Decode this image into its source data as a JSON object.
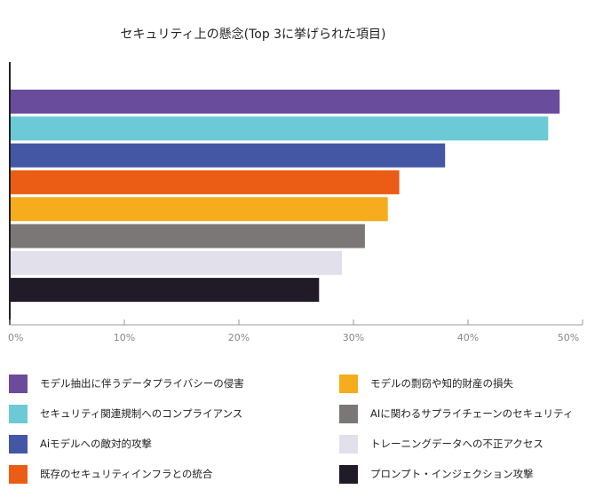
{
  "chart_data": {
    "type": "bar",
    "orientation": "horizontal",
    "title": "セキュリティ上の懸念(Top 3に挙げられた項目)",
    "xlim": [
      0,
      50
    ],
    "xticks": [
      "0%",
      "10%",
      "20%",
      "30%",
      "40%",
      "50%"
    ],
    "grid": false,
    "legend_position": "bottom",
    "categories": [
      "モデル抽出に伴うデータプライバシーの侵害",
      "セキュリティ関連規制へのコンプライアンス",
      "Aiモデルへの敵対的攻撃",
      "既存のセキュリティインフラとの統合",
      "モデルの剽窃や知的財産の損失",
      "AIに関わるサプライチェーンのセキュリティ",
      "トレーニングデータへの不正アクセス",
      "プロンプト・インジェクション攻撃"
    ],
    "values": [
      48,
      47,
      38,
      34,
      33,
      31,
      29,
      27
    ],
    "colors": [
      "#6a4c9c",
      "#6ccad6",
      "#4457a5",
      "#eb5d14",
      "#f6ac1c",
      "#7a7776",
      "#e2e0ea",
      "#201b27"
    ]
  }
}
